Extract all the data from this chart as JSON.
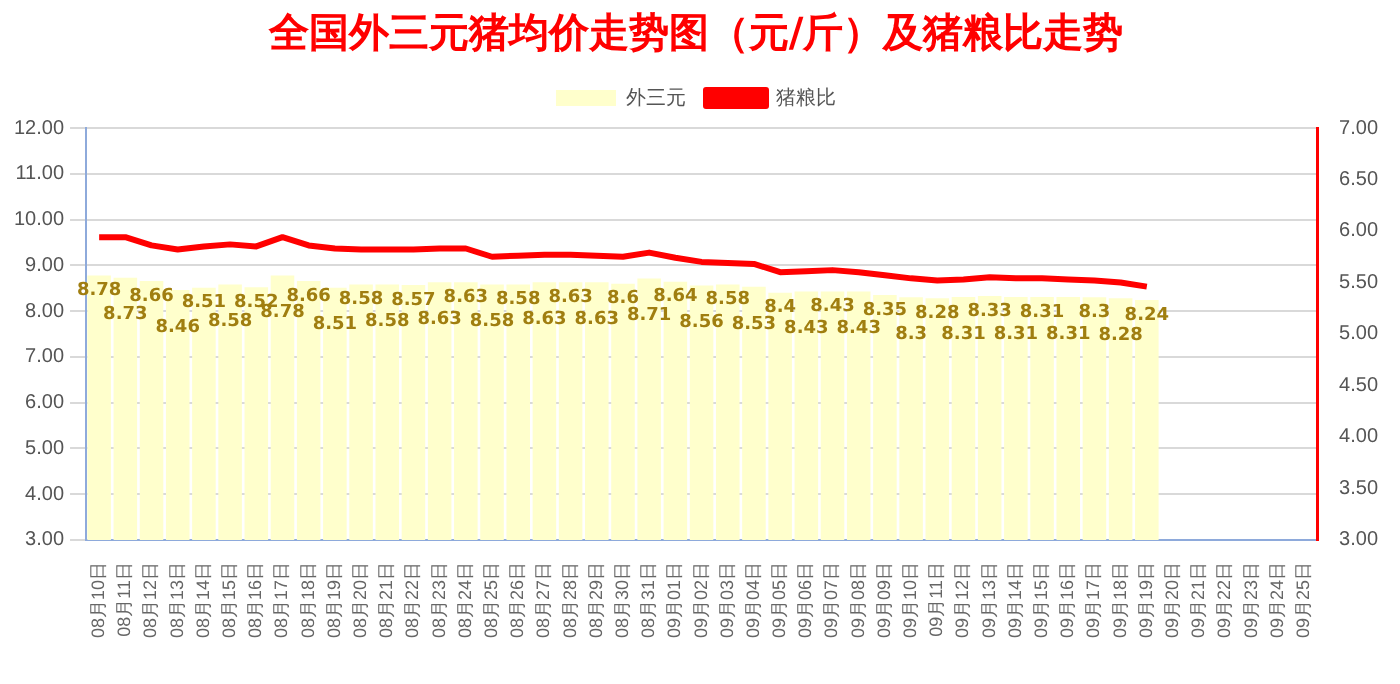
{
  "chart_data": {
    "type": "bar",
    "title": "全国外三元猪均价走势图（元/斤）及猪粮比走势",
    "categories": [
      "08月10日",
      "08月11日",
      "08月12日",
      "08月13日",
      "08月14日",
      "08月15日",
      "08月16日",
      "08月17日",
      "08月18日",
      "08月19日",
      "08月20日",
      "08月21日",
      "08月22日",
      "08月23日",
      "08月24日",
      "08月25日",
      "08月26日",
      "08月27日",
      "08月28日",
      "08月29日",
      "08月30日",
      "08月31日",
      "09月01日",
      "09月02日",
      "09月03日",
      "09月04日",
      "09月05日",
      "09月06日",
      "09月07日",
      "09月08日",
      "09月09日",
      "09月10日",
      "09月11日",
      "09月12日",
      "09月13日",
      "09月14日",
      "09月15日",
      "09月16日",
      "09月17日",
      "09月18日",
      "09月19日",
      "09月20日",
      "09月21日",
      "09月22日",
      "09月23日",
      "09月24日",
      "09月25日"
    ],
    "series": [
      {
        "name": "外三元",
        "color": "#ffffcc",
        "value_labels": [
          "8.78",
          "8.73",
          "8.66",
          "8.46",
          "8.51",
          "8.58",
          "8.52",
          "8.78",
          "8.66",
          "8.51",
          "8.58",
          "8.58",
          "8.57",
          "8.63",
          "8.63",
          "8.58",
          "8.58",
          "8.63",
          "8.63",
          "8.63",
          "8.6",
          "8.71",
          "8.64",
          "8.56",
          "8.58",
          "8.53",
          "8.4",
          "8.43",
          "8.43",
          "8.43",
          "8.35",
          "8.3",
          "8.28",
          "8.31",
          "8.33",
          "8.31",
          "8.31",
          "8.31",
          "8.3",
          "8.28",
          "8.24",
          null,
          null,
          null,
          null,
          null,
          null
        ],
        "values": [
          8.78,
          8.73,
          8.66,
          8.46,
          8.51,
          8.58,
          8.52,
          8.78,
          8.66,
          8.51,
          8.58,
          8.58,
          8.57,
          8.63,
          8.63,
          8.58,
          8.58,
          8.63,
          8.63,
          8.63,
          8.6,
          8.71,
          8.64,
          8.56,
          8.58,
          8.53,
          8.4,
          8.43,
          8.43,
          8.43,
          8.35,
          8.3,
          8.28,
          8.31,
          8.33,
          8.31,
          8.31,
          8.31,
          8.3,
          8.28,
          8.24,
          null,
          null,
          null,
          null,
          null,
          null
        ]
      },
      {
        "name": "猪粮比",
        "type": "line",
        "axis": "y2",
        "color": "#ff0000",
        "values": [
          5.94,
          5.94,
          5.86,
          5.82,
          5.85,
          5.87,
          5.85,
          5.94,
          5.86,
          5.83,
          5.82,
          5.82,
          5.82,
          5.83,
          5.83,
          5.75,
          5.76,
          5.77,
          5.77,
          5.76,
          5.75,
          5.79,
          5.74,
          5.7,
          5.69,
          5.68,
          5.6,
          5.61,
          5.62,
          5.6,
          5.57,
          5.54,
          5.52,
          5.53,
          5.55,
          5.54,
          5.54,
          5.53,
          5.52,
          5.5,
          5.46,
          null,
          null,
          null,
          null,
          null,
          null
        ]
      }
    ],
    "ylim": [
      3,
      12
    ],
    "yticks": [
      {
        "value": 3,
        "label": "3.00"
      },
      {
        "value": 4,
        "label": "4.00"
      },
      {
        "value": 5,
        "label": "5.00"
      },
      {
        "value": 6,
        "label": "6.00"
      },
      {
        "value": 7,
        "label": "7.00"
      },
      {
        "value": 8,
        "label": "8.00"
      },
      {
        "value": 9,
        "label": "9.00"
      },
      {
        "value": 10,
        "label": "10.00"
      },
      {
        "value": 11,
        "label": "11.00"
      },
      {
        "value": 12,
        "label": "12.00"
      }
    ],
    "y2lim": [
      3,
      7
    ],
    "y2ticks": [
      {
        "value": 3,
        "label": "3.00"
      },
      {
        "value": 3.5,
        "label": "3.50"
      },
      {
        "value": 4,
        "label": "4.00"
      },
      {
        "value": 4.5,
        "label": "4.50"
      },
      {
        "value": 5,
        "label": "5.00"
      },
      {
        "value": 5.5,
        "label": "5.50"
      },
      {
        "value": 6,
        "label": "6.00"
      },
      {
        "value": 6.5,
        "label": "6.50"
      },
      {
        "value": 7,
        "label": "7.00"
      }
    ],
    "grid": "y",
    "legend": "top",
    "marker": "none"
  }
}
